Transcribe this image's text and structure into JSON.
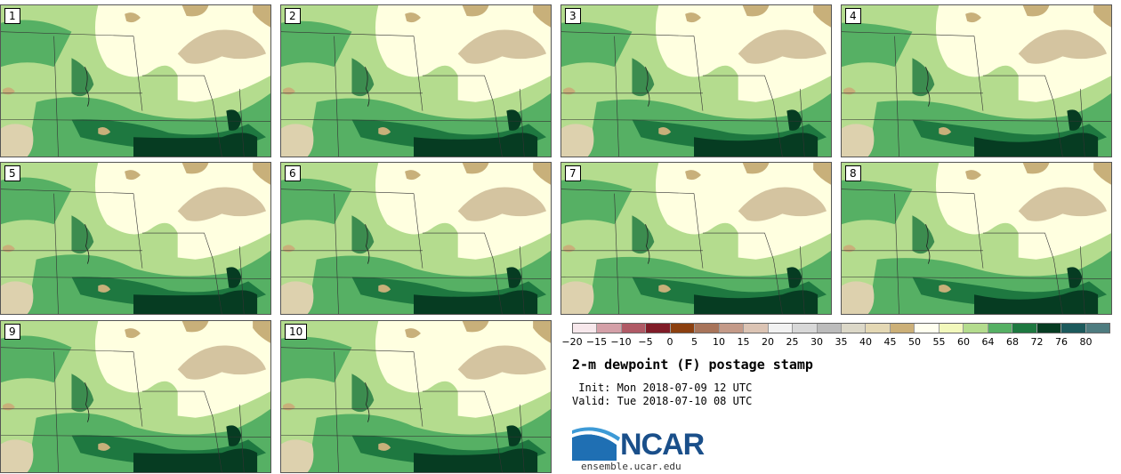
{
  "panels": [
    {
      "label": "1"
    },
    {
      "label": "2"
    },
    {
      "label": "3"
    },
    {
      "label": "4"
    },
    {
      "label": "5"
    },
    {
      "label": "6"
    },
    {
      "label": "7"
    },
    {
      "label": "8"
    },
    {
      "label": "9"
    },
    {
      "label": "10"
    }
  ],
  "colorbar": {
    "colors": [
      "#f7e8ec",
      "#d4a0a8",
      "#b05a66",
      "#801c28",
      "#8c4010",
      "#a8745a",
      "#c49a88",
      "#dcc4b4",
      "#f2f2f2",
      "#d8d8d8",
      "#bcbcbc",
      "#dcd8c8",
      "#e4d8b4",
      "#ccb078",
      "#fffff0",
      "#f2f8bc",
      "#b4dc8e",
      "#56b064",
      "#1e7840",
      "#063c22",
      "#1c5a5c",
      "#4e7c80"
    ],
    "ticks": [
      "−20",
      "−15",
      "−10",
      "−5",
      "0",
      "5",
      "10",
      "15",
      "20",
      "25",
      "30",
      "35",
      "40",
      "45",
      "50",
      "55",
      "60",
      "64",
      "68",
      "72",
      "76",
      "80"
    ]
  },
  "title": "2-m dewpoint (F) postage stamp",
  "init_line": " Init: Mon 2018-07-09 12 UTC",
  "valid_line": "Valid: Tue 2018-07-10 08 UTC",
  "logo_text": "NCAR",
  "url": "ensemble.ucar.edu",
  "map_colors": {
    "dry_tan": "#c8b07a",
    "light_tan": "#ddd1ae",
    "pale_yellow": "#ffffe0",
    "light_yellow": "#f2f8bc",
    "light_green": "#b4dc8e",
    "mid_green": "#56b064",
    "dark_green": "#1e7840",
    "very_dark_green": "#063c22",
    "lake": "#d4c4a0"
  }
}
